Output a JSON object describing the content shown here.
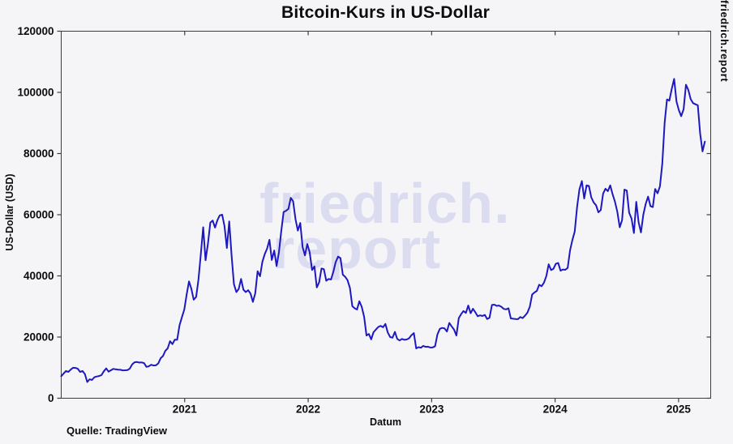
{
  "figure": {
    "title": "Bitcoin-Kurs in US-Dollar",
    "source_note": "Quelle: TradingView",
    "watermark_line1": "friedrich.",
    "watermark_line2": "report",
    "right_side_text": "friedrich.report",
    "background_color": "#f5f5f8",
    "text_color": "#0c0c0c",
    "watermark_color": "#dbdcf0"
  },
  "chart_data": {
    "type": "line",
    "title": "Bitcoin-Kurs in US-Dollar",
    "xlabel": "Datum",
    "ylabel": "US-Dollar (USD)",
    "x_ticks": [
      2021,
      2022,
      2023,
      2024,
      2025
    ],
    "y_ticks": [
      0,
      20000,
      40000,
      60000,
      80000,
      100000,
      120000
    ],
    "xlim": [
      2020.0,
      2025.26
    ],
    "ylim": [
      0,
      120000
    ],
    "grid": false,
    "legend": "none",
    "line_color": "#1e18c0",
    "spine_color": "#3d3d3d",
    "series": [
      {
        "name": "Bitcoin-Kurs (USD)",
        "x_unit": "decimal_year",
        "x_start": 2020.0,
        "x_step_days": 7,
        "values": [
          7200,
          8050,
          8900,
          8600,
          9350,
          9950,
          9900,
          9650,
          8600,
          8900,
          7900,
          5300,
          6200,
          5950,
          6850,
          7100,
          7250,
          7550,
          8800,
          9750,
          8700,
          9150,
          9600,
          9450,
          9350,
          9300,
          9100,
          9150,
          9200,
          9700,
          11100,
          11750,
          11850,
          11650,
          11700,
          11500,
          10250,
          10450,
          10950,
          10700,
          10750,
          11370,
          13050,
          13800,
          15500,
          16300,
          18650,
          17700,
          19150,
          19100,
          23850,
          26450,
          29000,
          33900,
          38200,
          35800,
          32200,
          33100,
          38900,
          47200,
          55900,
          45100,
          50400,
          57400,
          58100,
          55800,
          58200,
          59800,
          60000,
          56200,
          49100,
          57800,
          46700,
          37300,
          34700,
          35700,
          39000,
          35500,
          34700,
          35300,
          34200,
          31500,
          34300,
          41500,
          39900,
          44600,
          47100,
          48900,
          51800,
          45200,
          48300,
          43200,
          47700,
          54700,
          60900,
          61300,
          61900,
          65500,
          64400,
          58600,
          54800,
          57300,
          49400,
          46700,
          50400,
          47700,
          41900,
          43100,
          36200,
          37900,
          42400,
          42200,
          38400,
          39000,
          38800,
          41300,
          44500,
          46300,
          45800,
          40400,
          39700,
          38600,
          36000,
          30100,
          29400,
          29000,
          31700,
          29900,
          26600,
          20500,
          21000,
          19250,
          21600,
          22500,
          23300,
          23650,
          23200,
          24300,
          21500,
          20000,
          19800,
          21700,
          19400,
          18900,
          19400,
          19100,
          19200,
          19600,
          20600,
          21300,
          16300,
          16700,
          16500,
          17100,
          16800,
          16850,
          16550,
          16600,
          17000,
          20900,
          22700,
          23000,
          22800,
          21800,
          24600,
          23500,
          22400,
          20500,
          26200,
          27500,
          28500,
          27900,
          30300,
          27800,
          29250,
          28100,
          26800,
          27100,
          26900,
          27250,
          25900,
          26300,
          30500,
          30600,
          30200,
          30300,
          29900,
          29200,
          29050,
          29400,
          26100,
          26000,
          25900,
          25850,
          26550,
          26200,
          27000,
          27950,
          29900,
          33900,
          34600,
          35100,
          37100,
          36600,
          37800,
          39950,
          43800,
          41900,
          42300,
          43950,
          44200,
          41700,
          42100,
          42000,
          42600,
          48300,
          51700,
          54500,
          62500,
          68300,
          71000,
          65300,
          69600,
          69400,
          65700,
          64000,
          63100,
          60800,
          61500,
          66900,
          68500,
          67700,
          69600,
          66700,
          64300,
          61000,
          55900,
          58200,
          68200,
          67900,
          60700,
          58700,
          54000,
          64200,
          57500,
          54200,
          60000,
          63600,
          65900,
          62800,
          62500,
          68400,
          67000,
          69300,
          76700,
          90100,
          97700,
          97300,
          101200,
          104400,
          97000,
          94200,
          92200,
          94500,
          102500,
          100800,
          97800,
          96500,
          96100,
          95800,
          86500,
          80700,
          83900
        ]
      }
    ]
  }
}
